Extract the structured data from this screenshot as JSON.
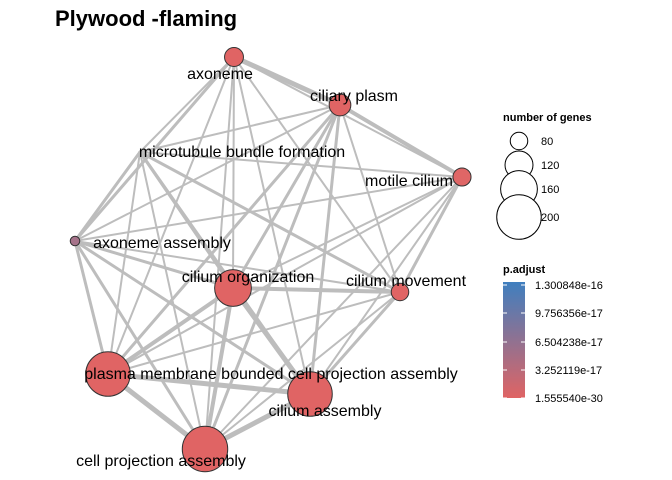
{
  "title": "Plywood -flaming",
  "nodes": [
    {
      "id": "axoneme",
      "label": "axoneme",
      "genes": 85,
      "color": "#e06464"
    },
    {
      "id": "ciliary_plasm",
      "label": "ciliary plasm",
      "genes": 95,
      "color": "#e06464"
    },
    {
      "id": "microtubule_bundle_formation",
      "label": "microtubule bundle formation",
      "genes": 0,
      "color": "#e06464"
    },
    {
      "id": "motile_cilium",
      "label": "motile cilium",
      "genes": 82,
      "color": "#df6666"
    },
    {
      "id": "axoneme_assembly",
      "label": "axoneme assembly",
      "genes": 55,
      "color": "#a6738a"
    },
    {
      "id": "cilium_organization",
      "label": "cilium organization",
      "genes": 160,
      "color": "#e06464"
    },
    {
      "id": "cilium_movement",
      "label": "cilium movement",
      "genes": 80,
      "color": "#e06464"
    },
    {
      "id": "plasma_membrane_bounded_cell_projection_assembly",
      "label": "plasma membrane bounded cell projection assembly",
      "genes": 200,
      "color": "#e06464"
    },
    {
      "id": "cilium_assembly",
      "label": "cilium assembly",
      "genes": 200,
      "color": "#e06464"
    },
    {
      "id": "cell_projection_assembly",
      "label": "cell projection assembly",
      "genes": 205,
      "color": "#e06464"
    }
  ],
  "edges": [
    [
      "axoneme",
      "ciliary_plasm",
      5
    ],
    [
      "axoneme",
      "microtubule_bundle_formation",
      2
    ],
    [
      "axoneme",
      "motile_cilium",
      2
    ],
    [
      "axoneme",
      "axoneme_assembly",
      3
    ],
    [
      "axoneme",
      "cilium_organization",
      2
    ],
    [
      "axoneme",
      "cilium_movement",
      2
    ],
    [
      "axoneme",
      "plasma_membrane_bounded_cell_projection_assembly",
      2
    ],
    [
      "axoneme",
      "cilium_assembly",
      2
    ],
    [
      "axoneme",
      "cell_projection_assembly",
      2
    ],
    [
      "ciliary_plasm",
      "microtubule_bundle_formation",
      2
    ],
    [
      "ciliary_plasm",
      "motile_cilium",
      4
    ],
    [
      "ciliary_plasm",
      "axoneme_assembly",
      2
    ],
    [
      "ciliary_plasm",
      "cilium_organization",
      3
    ],
    [
      "ciliary_plasm",
      "cilium_movement",
      2
    ],
    [
      "ciliary_plasm",
      "plasma_membrane_bounded_cell_projection_assembly",
      3
    ],
    [
      "ciliary_plasm",
      "cilium_assembly",
      3
    ],
    [
      "ciliary_plasm",
      "cell_projection_assembly",
      3
    ],
    [
      "microtubule_bundle_formation",
      "motile_cilium",
      2
    ],
    [
      "microtubule_bundle_formation",
      "axoneme_assembly",
      3
    ],
    [
      "microtubule_bundle_formation",
      "cilium_organization",
      3
    ],
    [
      "microtubule_bundle_formation",
      "cilium_movement",
      3
    ],
    [
      "microtubule_bundle_formation",
      "plasma_membrane_bounded_cell_projection_assembly",
      2
    ],
    [
      "microtubule_bundle_formation",
      "cilium_assembly",
      3
    ],
    [
      "microtubule_bundle_formation",
      "cell_projection_assembly",
      2
    ],
    [
      "motile_cilium",
      "axoneme_assembly",
      2
    ],
    [
      "motile_cilium",
      "cilium_organization",
      2
    ],
    [
      "motile_cilium",
      "cilium_movement",
      3
    ],
    [
      "motile_cilium",
      "plasma_membrane_bounded_cell_projection_assembly",
      2
    ],
    [
      "motile_cilium",
      "cilium_assembly",
      2
    ],
    [
      "motile_cilium",
      "cell_projection_assembly",
      2
    ],
    [
      "axoneme_assembly",
      "cilium_organization",
      3
    ],
    [
      "axoneme_assembly",
      "cilium_movement",
      2
    ],
    [
      "axoneme_assembly",
      "plasma_membrane_bounded_cell_projection_assembly",
      3
    ],
    [
      "axoneme_assembly",
      "cilium_assembly",
      3
    ],
    [
      "axoneme_assembly",
      "cell_projection_assembly",
      3
    ],
    [
      "cilium_organization",
      "cilium_movement",
      4
    ],
    [
      "cilium_organization",
      "plasma_membrane_bounded_cell_projection_assembly",
      4
    ],
    [
      "cilium_organization",
      "cilium_assembly",
      5
    ],
    [
      "cilium_organization",
      "cell_projection_assembly",
      4
    ],
    [
      "cilium_movement",
      "plasma_membrane_bounded_cell_projection_assembly",
      2
    ],
    [
      "cilium_movement",
      "cilium_assembly",
      3
    ],
    [
      "cilium_movement",
      "cell_projection_assembly",
      2
    ],
    [
      "plasma_membrane_bounded_cell_projection_assembly",
      "cilium_assembly",
      5
    ],
    [
      "plasma_membrane_bounded_cell_projection_assembly",
      "cell_projection_assembly",
      5
    ],
    [
      "cilium_assembly",
      "cell_projection_assembly",
      5
    ]
  ],
  "legend_size": {
    "title": "number of genes",
    "items": [
      {
        "label": "80",
        "value": 80
      },
      {
        "label": "120",
        "value": 120
      },
      {
        "label": "160",
        "value": 160
      },
      {
        "label": "200",
        "value": 200
      }
    ]
  },
  "legend_color": {
    "title": "p.adjust",
    "colors": {
      "high": "#3f7fbf",
      "low": "#e06464"
    },
    "ticks": [
      "1.300848e-16",
      "9.756356e-17",
      "6.504238e-17",
      "3.252119e-17",
      "1.555540e-30"
    ]
  }
}
